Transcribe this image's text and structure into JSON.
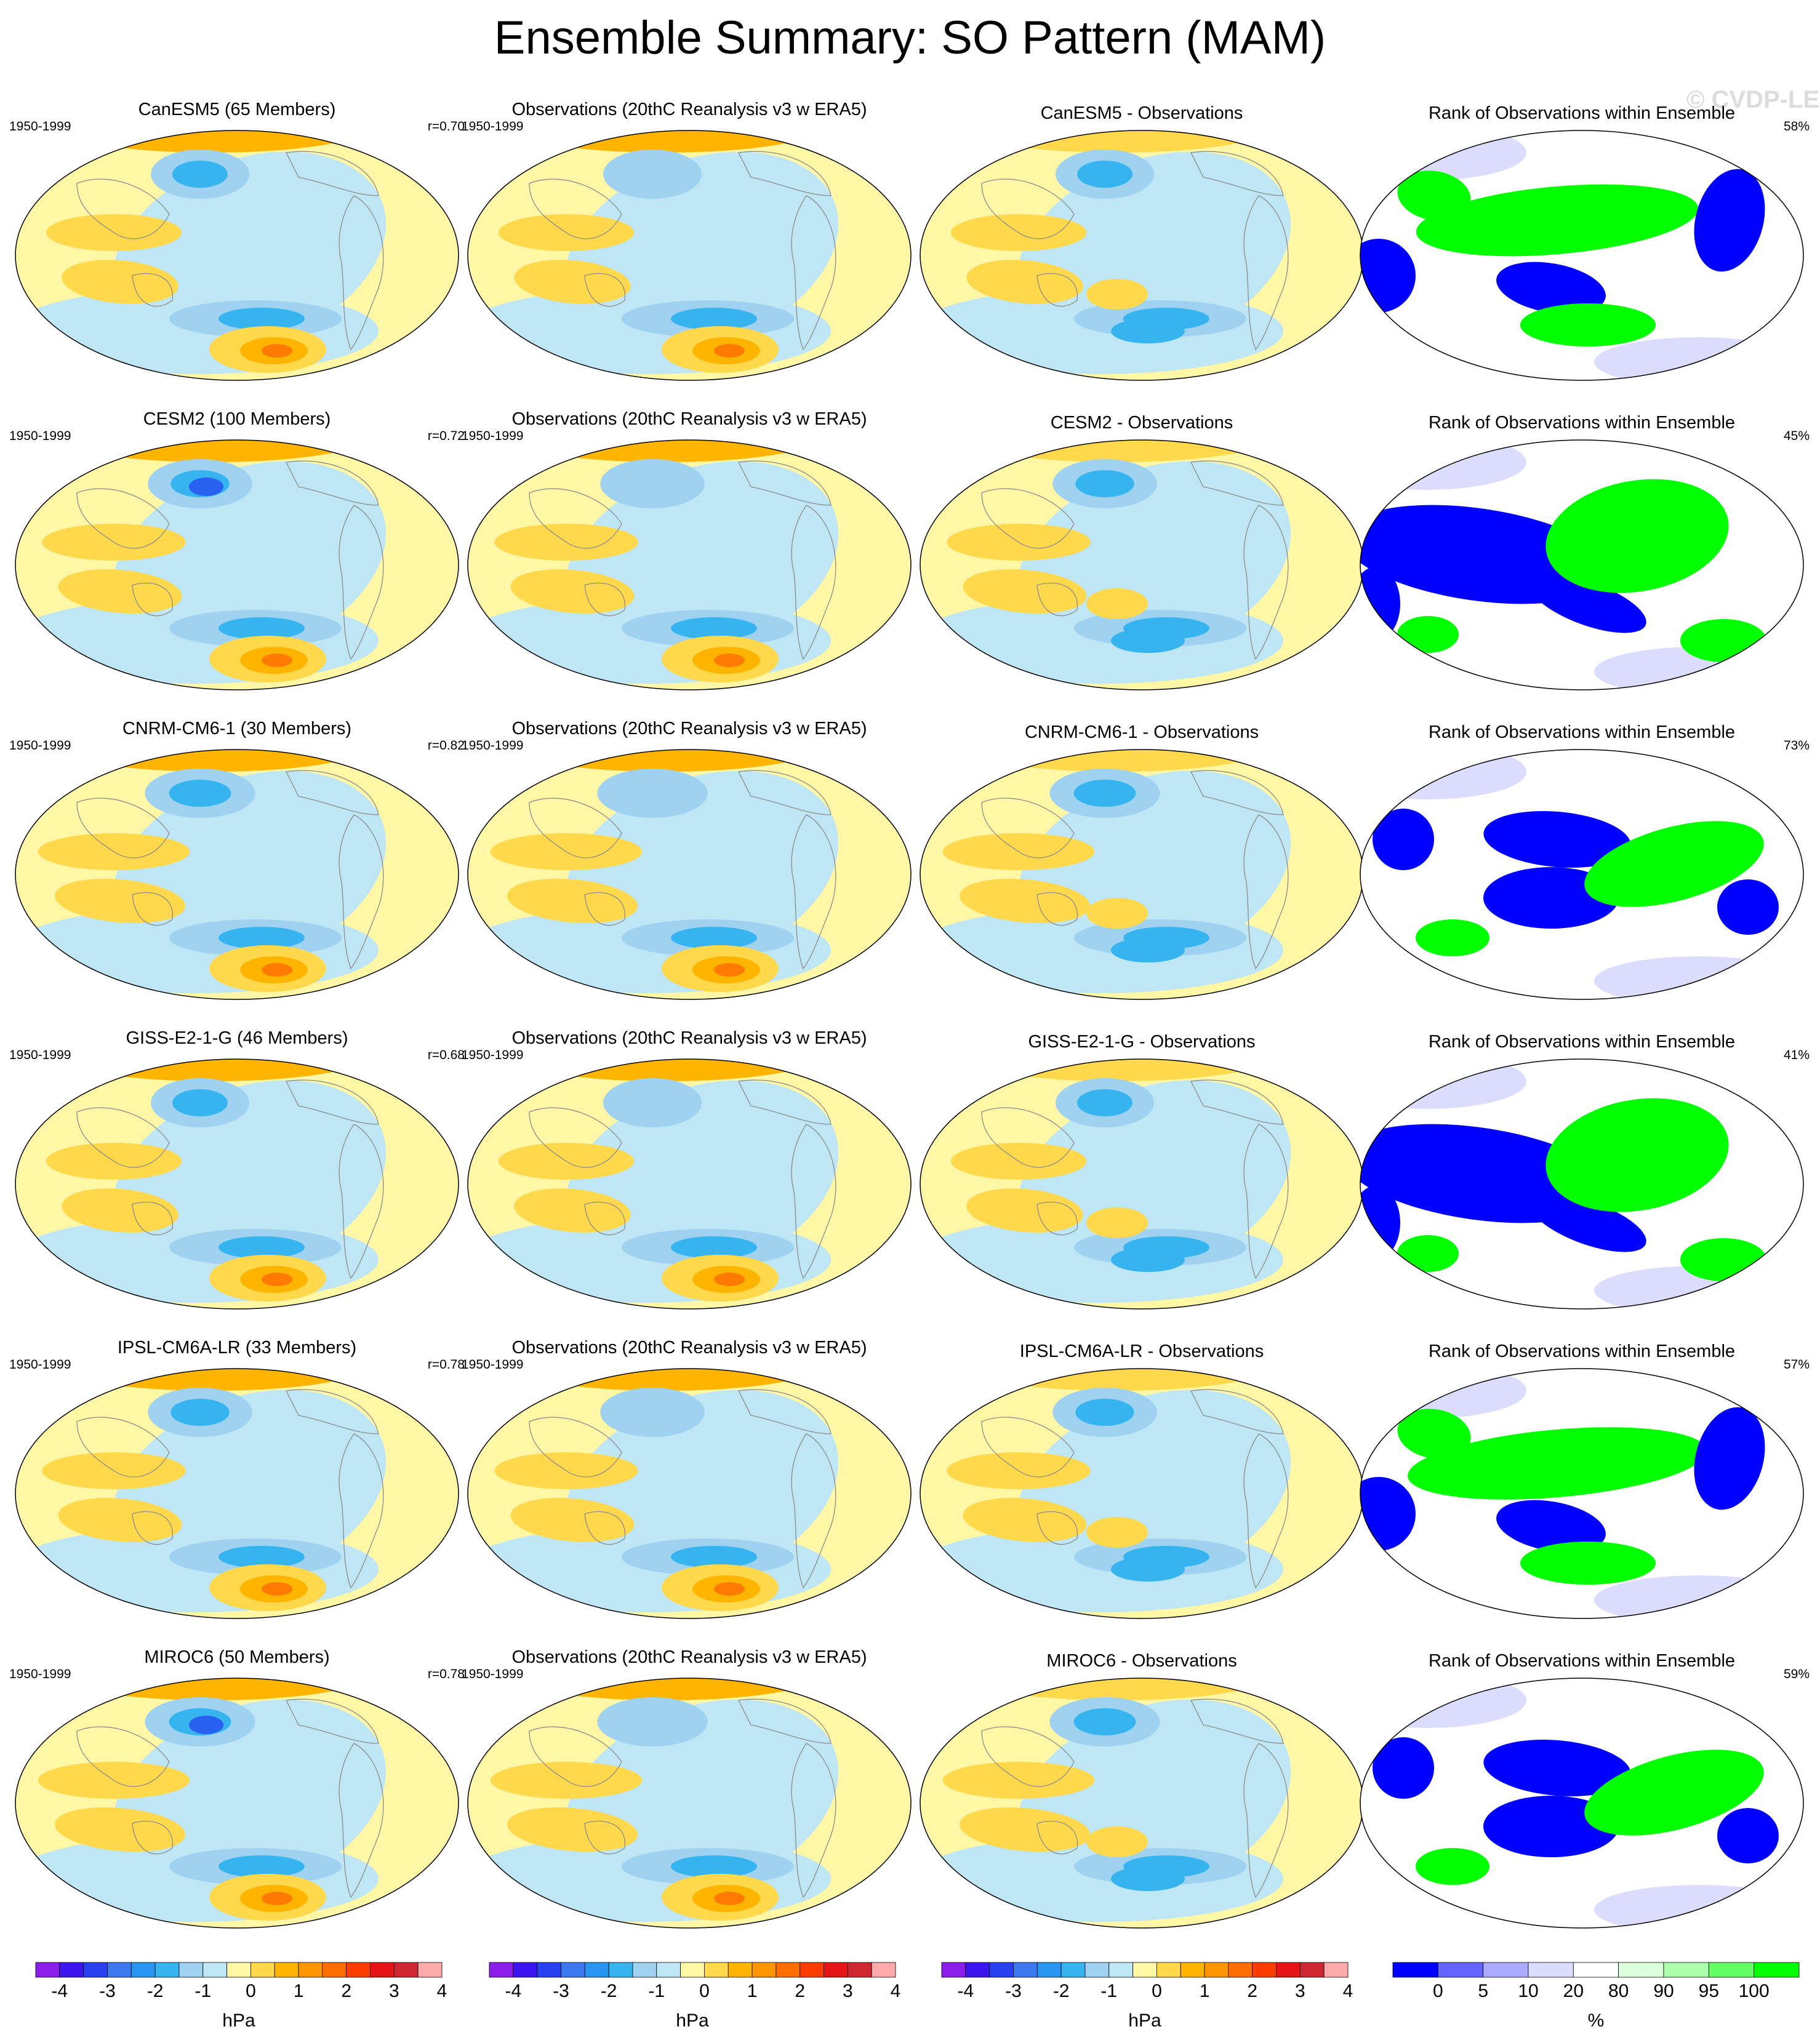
{
  "figure": {
    "title": "Ensemble Summary: SO Pattern (MAM)",
    "watermark": "© CVDP-LE"
  },
  "columns": [
    {
      "kind": "model"
    },
    {
      "kind": "observations"
    },
    {
      "kind": "difference"
    },
    {
      "kind": "rank"
    }
  ],
  "rows": [
    {
      "model": {
        "title": "CanESM5 (65 Members)",
        "years": "1950-1999",
        "stat": "r=0.70"
      },
      "observations": {
        "title": "Observations (20thC Reanalysis v3 w ERA5)",
        "years": "1950-1999"
      },
      "difference": {
        "title": "CanESM5 - Observations"
      },
      "rank": {
        "title": "Rank of Observations within Ensemble",
        "stat": "58%"
      }
    },
    {
      "model": {
        "title": "CESM2 (100 Members)",
        "years": "1950-1999",
        "stat": "r=0.72"
      },
      "observations": {
        "title": "Observations (20thC Reanalysis v3 w ERA5)",
        "years": "1950-1999"
      },
      "difference": {
        "title": "CESM2 - Observations"
      },
      "rank": {
        "title": "Rank of Observations within Ensemble",
        "stat": "45%"
      }
    },
    {
      "model": {
        "title": "CNRM-CM6-1 (30 Members)",
        "years": "1950-1999",
        "stat": "r=0.82"
      },
      "observations": {
        "title": "Observations (20thC Reanalysis v3 w ERA5)",
        "years": "1950-1999"
      },
      "difference": {
        "title": "CNRM-CM6-1 - Observations"
      },
      "rank": {
        "title": "Rank of Observations within Ensemble",
        "stat": "73%"
      }
    },
    {
      "model": {
        "title": "GISS-E2-1-G (46 Members)",
        "years": "1950-1999",
        "stat": "r=0.68"
      },
      "observations": {
        "title": "Observations (20thC Reanalysis v3 w ERA5)",
        "years": "1950-1999"
      },
      "difference": {
        "title": "GISS-E2-1-G - Observations"
      },
      "rank": {
        "title": "Rank of Observations within Ensemble",
        "stat": "41%"
      }
    },
    {
      "model": {
        "title": "IPSL-CM6A-LR (33 Members)",
        "years": "1950-1999",
        "stat": "r=0.78"
      },
      "observations": {
        "title": "Observations (20thC Reanalysis v3 w ERA5)",
        "years": "1950-1999"
      },
      "difference": {
        "title": "IPSL-CM6A-LR - Observations"
      },
      "rank": {
        "title": "Rank of Observations within Ensemble",
        "stat": "57%"
      }
    },
    {
      "model": {
        "title": "MIROC6 (50 Members)",
        "years": "1950-1999",
        "stat": "r=0.78"
      },
      "observations": {
        "title": "Observations (20thC Reanalysis v3 w ERA5)",
        "years": "1950-1999"
      },
      "difference": {
        "title": "MIROC6 - Observations"
      },
      "rank": {
        "title": "Rank of Observations within Ensemble",
        "stat": "59%"
      }
    }
  ],
  "colorbars": {
    "pressure": {
      "units": "hPa",
      "tick_labels": [
        "-4",
        "-3",
        "-2",
        "-1",
        "0",
        "1",
        "2",
        "3",
        "4"
      ],
      "colors": [
        "#8c1ee8",
        "#3c14f0",
        "#2840f0",
        "#3c78f0",
        "#2896f0",
        "#36b4f0",
        "#9ed2f0",
        "#bee6f5",
        "#fff7a6",
        "#ffd84c",
        "#ffb400",
        "#ff9600",
        "#ff6e00",
        "#ff3c00",
        "#e61414",
        "#cd2832",
        "#ffaaaa"
      ]
    },
    "rank": {
      "units": "%",
      "tick_labels": [
        "0",
        "5",
        "10",
        "20",
        "80",
        "90",
        "95",
        "100"
      ],
      "colors": [
        "#0000ff",
        "#6464ff",
        "#aaaaff",
        "#dcdcff",
        "#ffffff",
        "#dcffdc",
        "#aaffaa",
        "#64ff64",
        "#00ff00"
      ]
    }
  },
  "map_palette": {
    "ocean_land_outline": "#8c8c8c",
    "neutral_pos": "#fff7a6",
    "neutral_neg": "#bee6f5",
    "pos_mid": "#ffd84c",
    "pos_high": "#ffb400",
    "pos_max": "#ff7a00",
    "neg_mid": "#9ed2f0",
    "neg_high": "#36b4f0",
    "neg_max": "#2860f0",
    "rank_low": "#0000ff",
    "rank_low_light": "#dcdcff",
    "rank_high": "#00ff00"
  }
}
